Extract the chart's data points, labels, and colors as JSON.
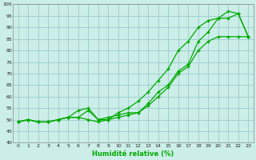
{
  "x": [
    0,
    1,
    2,
    3,
    4,
    5,
    6,
    7,
    8,
    9,
    10,
    11,
    12,
    13,
    14,
    15,
    16,
    17,
    18,
    19,
    20,
    21,
    22,
    23
  ],
  "line_bottom": [
    49,
    50,
    49,
    49,
    50,
    51,
    51,
    50,
    49,
    50,
    51,
    52,
    53,
    56,
    60,
    64,
    70,
    73,
    80,
    84,
    86,
    86,
    86,
    86
  ],
  "line_middle": [
    49,
    50,
    49,
    49,
    50,
    51,
    51,
    54,
    50,
    51,
    52,
    53,
    53,
    57,
    62,
    65,
    71,
    74,
    84,
    88,
    94,
    94,
    96,
    86
  ],
  "line_top": [
    49,
    50,
    49,
    49,
    50,
    51,
    54,
    55,
    50,
    50,
    53,
    55,
    58,
    62,
    67,
    72,
    80,
    84,
    90,
    93,
    94,
    97,
    96,
    86
  ],
  "bg_color": "#cceee8",
  "grid_color": "#99cccc",
  "line_color": "#00aa00",
  "marker": "+",
  "xlabel": "Humidité relative (%)",
  "ylim": [
    40,
    100
  ],
  "xlim": [
    -0.5,
    23.5
  ],
  "yticks": [
    40,
    45,
    50,
    55,
    60,
    65,
    70,
    75,
    80,
    85,
    90,
    95,
    100
  ],
  "xticks": [
    0,
    1,
    2,
    3,
    4,
    5,
    6,
    7,
    8,
    9,
    10,
    11,
    12,
    13,
    14,
    15,
    16,
    17,
    18,
    19,
    20,
    21,
    22,
    23
  ]
}
